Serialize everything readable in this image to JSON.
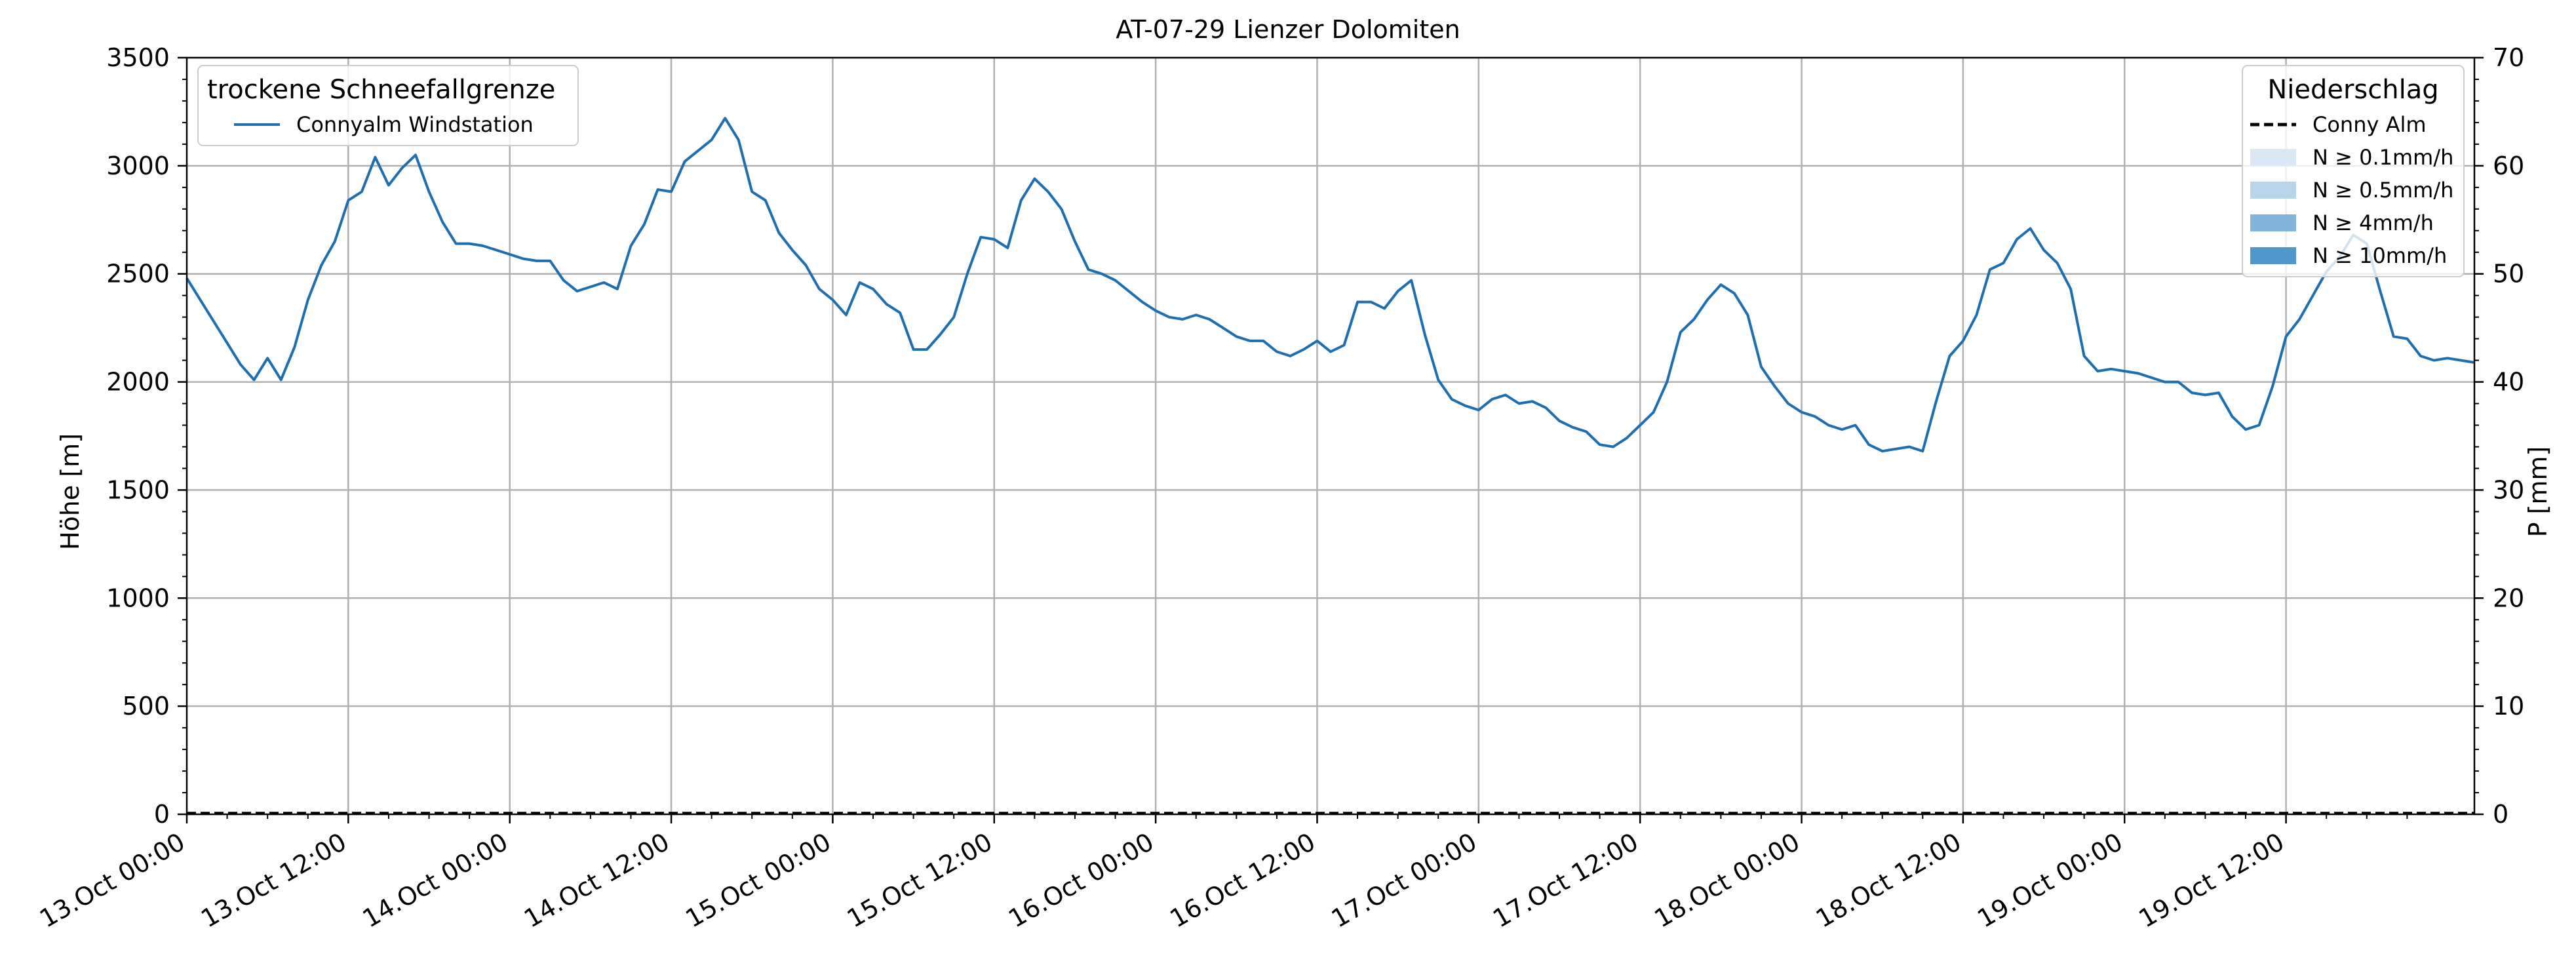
{
  "chart_data": {
    "type": "line",
    "title": "AT-07-29 Lienzer Dolomiten",
    "ylabel_left": "Höhe [m]",
    "ylabel_right": "P [mm]",
    "xlabel": "",
    "ylim_left": [
      0,
      3500
    ],
    "ylim_right": [
      0,
      70
    ],
    "yticks_left": [
      0,
      500,
      1000,
      1500,
      2000,
      2500,
      3000,
      3500
    ],
    "yticks_right": [
      0,
      10,
      20,
      30,
      40,
      50,
      60,
      70
    ],
    "x_start": "13.Oct 00:00",
    "x_end": "19.Oct 23:00",
    "x_step_hours": 1,
    "xtick_labels": [
      "13.Oct 00:00",
      "13.Oct 12:00",
      "14.Oct 00:00",
      "14.Oct 12:00",
      "15.Oct 00:00",
      "15.Oct 12:00",
      "16.Oct 00:00",
      "16.Oct 12:00",
      "17.Oct 00:00",
      "17.Oct 12:00",
      "18.Oct 00:00",
      "18.Oct 12:00",
      "19.Oct 00:00",
      "19.Oct 12:00"
    ],
    "grid": true,
    "colors": {
      "snowline": "#1f6fb0",
      "precip": "#000000",
      "n01": "#dae8f5",
      "n05": "#b9d4ea",
      "n4": "#82b5d9",
      "n10": "#4f98c9",
      "grid": "#b0b0b0"
    },
    "legend_left": {
      "title": "trockene Schneefallgrenze",
      "placement": "upper-left",
      "entries": [
        "Connyalm Windstation"
      ]
    },
    "legend_right": {
      "title": "Niederschlag",
      "placement": "upper-right",
      "entries": [
        "Conny Alm",
        "N ≥ 0.1mm/h",
        "N ≥ 0.5mm/h",
        "N ≥ 4mm/h",
        "N ≥ 10mm/h"
      ]
    },
    "series": [
      {
        "name": "Connyalm Windstation",
        "axis": "left",
        "style": "solid",
        "values": [
          2480,
          2380,
          2280,
          2180,
          2080,
          2010,
          2110,
          2010,
          2160,
          2380,
          2540,
          2650,
          2840,
          2880,
          3040,
          2910,
          2990,
          3050,
          2880,
          2740,
          2640,
          2640,
          2630,
          2610,
          2590,
          2570,
          2560,
          2560,
          2470,
          2420,
          2440,
          2460,
          2430,
          2630,
          2730,
          2890,
          2880,
          3020,
          3070,
          3120,
          3220,
          3120,
          2880,
          2840,
          2690,
          2610,
          2540,
          2430,
          2380,
          2310,
          2460,
          2430,
          2360,
          2320,
          2150,
          2150,
          2220,
          2300,
          2500,
          2670,
          2660,
          2620,
          2840,
          2940,
          2880,
          2800,
          2650,
          2520,
          2500,
          2470,
          2420,
          2370,
          2330,
          2300,
          2290,
          2310,
          2290,
          2250,
          2210,
          2190,
          2190,
          2140,
          2120,
          2150,
          2190,
          2140,
          2170,
          2370,
          2370,
          2340,
          2420,
          2470,
          2220,
          2010,
          1920,
          1890,
          1870,
          1920,
          1940,
          1900,
          1910,
          1880,
          1820,
          1790,
          1770,
          1710,
          1700,
          1740,
          1800,
          1860,
          2000,
          2230,
          2290,
          2380,
          2450,
          2410,
          2310,
          2070,
          1980,
          1900,
          1860,
          1840,
          1800,
          1780,
          1800,
          1710,
          1680,
          1690,
          1700,
          1680,
          1910,
          2120,
          2190,
          2310,
          2520,
          2550,
          2660,
          2710,
          2610,
          2550,
          2430,
          2120,
          2050,
          2060,
          2050,
          2040,
          2020,
          2000,
          2000,
          1950,
          1940,
          1950,
          1840,
          1780,
          1800,
          1980,
          2210,
          2290,
          2400,
          2510,
          2580,
          2680,
          2640,
          2420,
          2210,
          2200,
          2120,
          2100,
          2110,
          2100,
          2090
        ]
      },
      {
        "name": "Conny Alm",
        "axis": "right",
        "style": "dashed",
        "values": [
          0,
          0
        ]
      }
    ]
  }
}
